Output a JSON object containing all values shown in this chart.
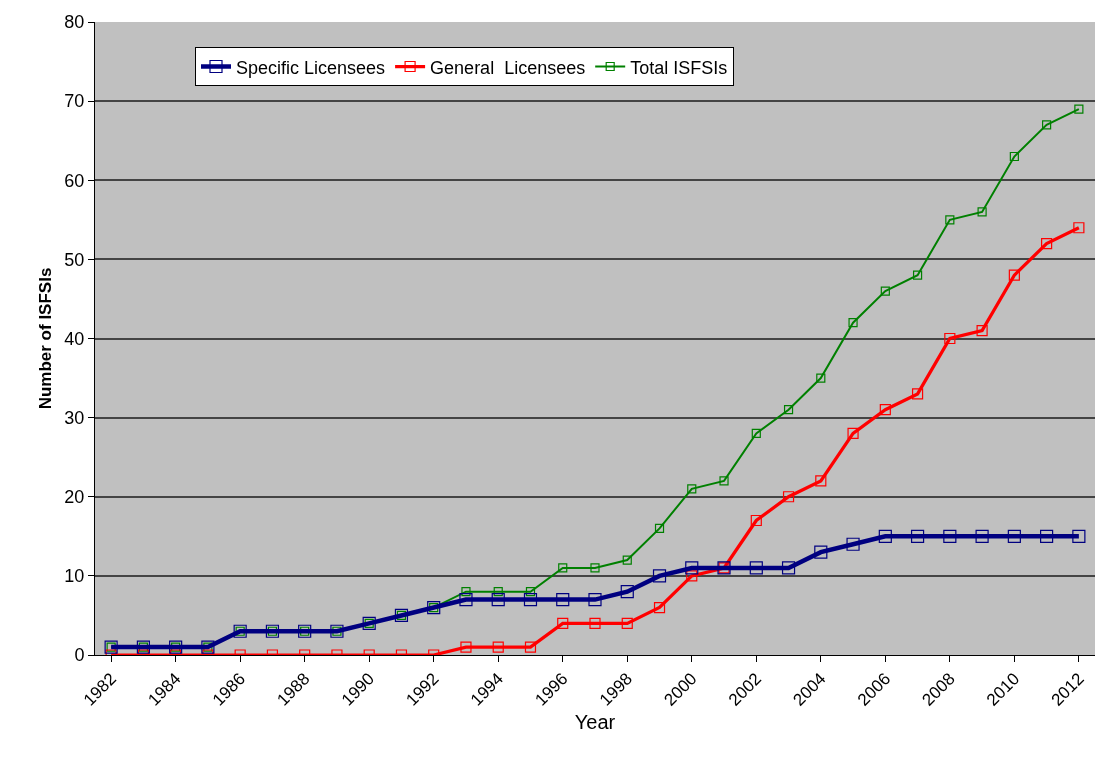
{
  "chart_data": {
    "type": "line",
    "xlabel": "Year",
    "ylabel": "Number of ISFSIs",
    "x": [
      1982,
      1983,
      1984,
      1985,
      1986,
      1987,
      1988,
      1989,
      1990,
      1991,
      1992,
      1993,
      1994,
      1995,
      1996,
      1997,
      1998,
      1999,
      2000,
      2001,
      2002,
      2003,
      2004,
      2005,
      2006,
      2007,
      2008,
      2009,
      2010,
      2011,
      2012
    ],
    "series": [
      {
        "name": "Specific Licensees",
        "color": "#000080",
        "values": [
          1,
          1,
          1,
          1,
          3,
          3,
          3,
          3,
          4,
          5,
          6,
          7,
          7,
          7,
          7,
          7,
          8,
          10,
          11,
          11,
          11,
          11,
          13,
          14,
          15,
          15,
          15,
          15,
          15,
          15,
          15
        ]
      },
      {
        "name": "General  Licensees",
        "color": "#ff0000",
        "values": [
          0,
          0,
          0,
          0,
          0,
          0,
          0,
          0,
          0,
          0,
          0,
          1,
          1,
          1,
          4,
          4,
          4,
          6,
          10,
          11,
          17,
          20,
          22,
          28,
          31,
          33,
          40,
          41,
          48,
          52,
          54
        ]
      },
      {
        "name": "Total ISFSIs",
        "color": "#008000",
        "values": [
          1,
          1,
          1,
          1,
          3,
          3,
          3,
          3,
          4,
          5,
          6,
          8,
          8,
          8,
          11,
          11,
          12,
          16,
          21,
          22,
          28,
          31,
          35,
          42,
          46,
          48,
          55,
          56,
          63,
          67,
          69
        ]
      }
    ],
    "xlim": [
      1981.5,
      2012.5
    ],
    "xticks": [
      1982,
      1984,
      1986,
      1988,
      1990,
      1992,
      1994,
      1996,
      1998,
      2000,
      2002,
      2004,
      2006,
      2008,
      2010,
      2012
    ],
    "ylim": [
      0,
      80
    ],
    "yticks": [
      0,
      10,
      20,
      30,
      40,
      50,
      60,
      70,
      80
    ],
    "grid": "y",
    "legend": "top",
    "marker": "square",
    "line_style": "solid"
  }
}
